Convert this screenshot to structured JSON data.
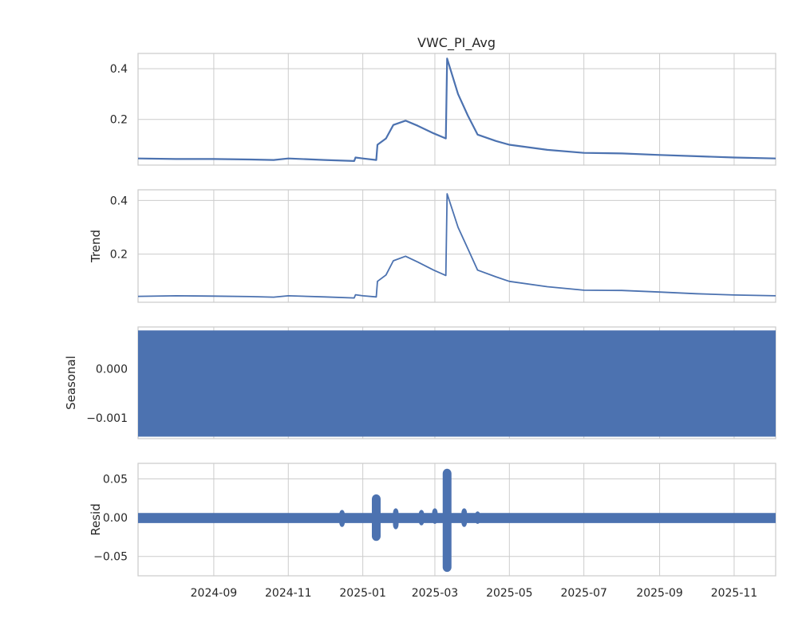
{
  "chart_data": {
    "type": "line",
    "title": "VWC_PI_Avg",
    "x_tick_labels": [
      "2024-09",
      "2024-11",
      "2025-01",
      "2025-03",
      "2025-05",
      "2025-07",
      "2025-09",
      "2025-11"
    ],
    "x_range": [
      "2024-07-01",
      "2025-12-05"
    ],
    "line_color": "#4c72b0",
    "grid": true,
    "panels": [
      {
        "ylabel": "",
        "ylim": [
          0.02,
          0.46
        ],
        "yticks": [
          0.2,
          0.4
        ],
        "ytick_labels": [
          "0.2",
          "0.4"
        ],
        "style": "line",
        "points": [
          [
            "2024-07-01",
            0.046
          ],
          [
            "2024-08-01",
            0.044
          ],
          [
            "2024-09-01",
            0.044
          ],
          [
            "2024-10-01",
            0.042
          ],
          [
            "2024-10-20",
            0.04
          ],
          [
            "2024-11-01",
            0.046
          ],
          [
            "2024-12-01",
            0.04
          ],
          [
            "2024-12-25",
            0.036
          ],
          [
            "2024-12-26",
            0.05
          ],
          [
            "2025-01-01",
            0.046
          ],
          [
            "2025-01-12",
            0.04
          ],
          [
            "2025-01-13",
            0.1
          ],
          [
            "2025-01-20",
            0.125
          ],
          [
            "2025-01-26",
            0.178
          ],
          [
            "2025-02-05",
            0.195
          ],
          [
            "2025-02-15",
            0.175
          ],
          [
            "2025-02-28",
            0.145
          ],
          [
            "2025-03-10",
            0.125
          ],
          [
            "2025-03-11",
            0.44
          ],
          [
            "2025-03-20",
            0.3
          ],
          [
            "2025-03-28",
            0.215
          ],
          [
            "2025-04-05",
            0.14
          ],
          [
            "2025-04-20",
            0.115
          ],
          [
            "2025-05-01",
            0.1
          ],
          [
            "2025-06-01",
            0.08
          ],
          [
            "2025-07-01",
            0.068
          ],
          [
            "2025-08-01",
            0.066
          ],
          [
            "2025-09-01",
            0.06
          ],
          [
            "2025-10-01",
            0.055
          ],
          [
            "2025-11-01",
            0.05
          ],
          [
            "2025-12-05",
            0.046
          ]
        ]
      },
      {
        "ylabel": "Trend",
        "ylim": [
          0.02,
          0.44
        ],
        "yticks": [
          0.2,
          0.4
        ],
        "ytick_labels": [
          "0.2",
          "0.4"
        ],
        "style": "line",
        "points": [
          [
            "2024-07-01",
            0.042
          ],
          [
            "2024-08-01",
            0.044
          ],
          [
            "2024-09-01",
            0.043
          ],
          [
            "2024-10-01",
            0.041
          ],
          [
            "2024-10-20",
            0.039
          ],
          [
            "2024-11-01",
            0.044
          ],
          [
            "2024-12-01",
            0.04
          ],
          [
            "2024-12-25",
            0.036
          ],
          [
            "2024-12-26",
            0.048
          ],
          [
            "2025-01-01",
            0.044
          ],
          [
            "2025-01-12",
            0.04
          ],
          [
            "2025-01-13",
            0.098
          ],
          [
            "2025-01-20",
            0.122
          ],
          [
            "2025-01-26",
            0.175
          ],
          [
            "2025-02-05",
            0.192
          ],
          [
            "2025-02-15",
            0.17
          ],
          [
            "2025-02-28",
            0.14
          ],
          [
            "2025-03-10",
            0.12
          ],
          [
            "2025-03-11",
            0.425
          ],
          [
            "2025-03-20",
            0.3
          ],
          [
            "2025-03-28",
            0.22
          ],
          [
            "2025-04-05",
            0.14
          ],
          [
            "2025-04-20",
            0.115
          ],
          [
            "2025-05-01",
            0.098
          ],
          [
            "2025-06-01",
            0.078
          ],
          [
            "2025-07-01",
            0.065
          ],
          [
            "2025-08-01",
            0.064
          ],
          [
            "2025-09-01",
            0.058
          ],
          [
            "2025-10-01",
            0.052
          ],
          [
            "2025-11-01",
            0.047
          ],
          [
            "2025-12-05",
            0.044
          ]
        ]
      },
      {
        "ylabel": "Seasonal",
        "ylim": [
          -0.00142,
          0.00085
        ],
        "yticks": [
          0.0,
          -0.001
        ],
        "ytick_labels": [
          "0.000",
          "−0.001"
        ],
        "style": "band",
        "band": [
          -0.00138,
          0.00078
        ]
      },
      {
        "ylabel": "Resid",
        "ylim": [
          -0.075,
          0.07
        ],
        "yticks": [
          0.05,
          0.0,
          -0.05
        ],
        "ytick_labels": [
          "0.05",
          "0.00",
          "−0.05"
        ],
        "style": "resid",
        "baseline_band": [
          -0.007,
          0.006
        ],
        "spikes": [
          [
            "2024-12-15",
            -0.012,
            0.01
          ],
          [
            "2025-01-12",
            -0.03,
            0.03
          ],
          [
            "2025-01-28",
            -0.015,
            0.012
          ],
          [
            "2025-02-18",
            -0.01,
            0.01
          ],
          [
            "2025-03-01",
            -0.008,
            0.012
          ],
          [
            "2025-03-11",
            -0.07,
            0.063
          ],
          [
            "2025-03-25",
            -0.012,
            0.012
          ],
          [
            "2025-04-05",
            -0.008,
            0.008
          ]
        ]
      }
    ]
  }
}
